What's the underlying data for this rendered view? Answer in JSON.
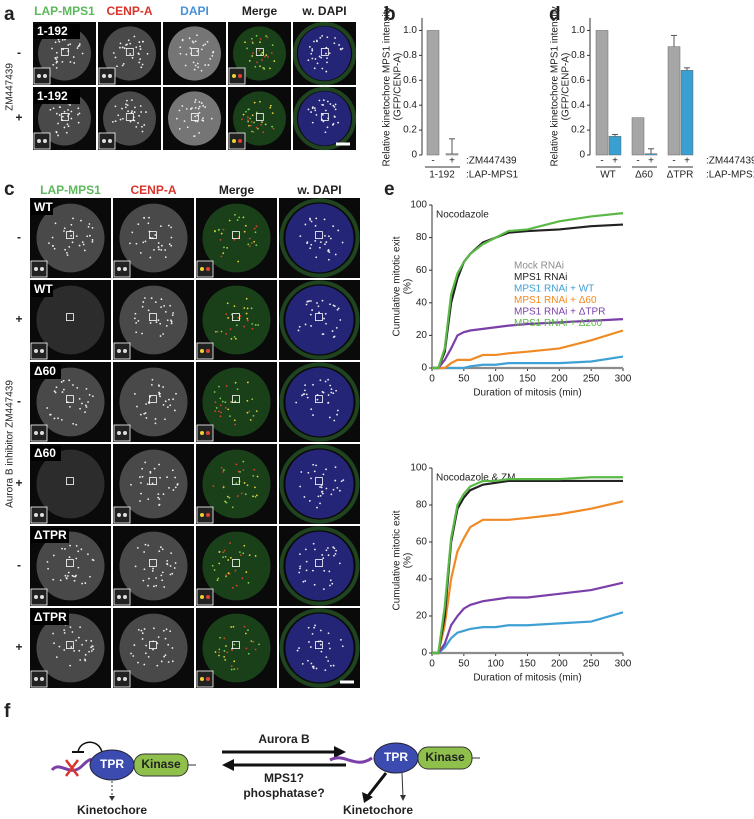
{
  "panel_a": {
    "letter": "a",
    "columns": [
      "LAP-MPS1",
      "CENP-A",
      "DAPI",
      "Merge",
      "w. DAPI"
    ],
    "side_label": "ZM447439",
    "rows": [
      {
        "label": "1-192",
        "condition": "-"
      },
      {
        "label": "1-192",
        "condition": "+"
      }
    ]
  },
  "panel_c": {
    "letter": "c",
    "columns": [
      "LAP-MPS1",
      "CENP-A",
      "Merge",
      "w. DAPI"
    ],
    "side_label": "Aurora B inhibitor ZM447439",
    "rows": [
      {
        "label": "WT",
        "condition": "-"
      },
      {
        "label": "WT",
        "condition": "+"
      },
      {
        "label": "Δ60",
        "condition": "-"
      },
      {
        "label": "Δ60",
        "condition": "+"
      },
      {
        "label": "ΔTPR",
        "condition": "-"
      },
      {
        "label": "ΔTPR",
        "condition": "+"
      }
    ]
  },
  "chart_data": [
    {
      "type": "bar",
      "letter": "b",
      "ylabel": "Relative kinetochore MPS1 intensity (GFP/CENP-A)",
      "categories": [
        "-",
        "+"
      ],
      "group_label": "1-192",
      "row_labels": [
        ":ZM447439",
        ":LAP-MPS1"
      ],
      "color": "#a6a6a6",
      "values": [
        1,
        0.01
      ],
      "errors": [
        null,
        0.12
      ],
      "ylim": [
        0,
        1.1
      ],
      "yticks": [
        0,
        0.2,
        0.4,
        0.6,
        0.8,
        {
          "value": 1,
          "label": "1.0"
        }
      ]
    },
    {
      "type": "grouped_bar",
      "letter": "d",
      "ylabel": "Relative kinetochore MPS1 intensity (GFP/CENP-A)",
      "categories": [
        "WT",
        "Δ60",
        "ΔTPR"
      ],
      "row_labels": [
        ":ZM447439",
        ":LAP-MPS1"
      ],
      "series": [
        {
          "name": "-",
          "color": "#a6a6a6",
          "values": [
            1,
            0.3,
            0.87
          ],
          "errors": [
            null,
            null,
            0.09
          ]
        },
        {
          "name": "+",
          "color": "#3a9fd1",
          "values": [
            0.15,
            0.01,
            0.68
          ],
          "errors": [
            0.015,
            0.04,
            0.02
          ]
        }
      ],
      "ylim": [
        0,
        1.1
      ],
      "yticks": [
        0,
        0.2,
        0.4,
        0.6,
        0.8,
        {
          "value": 1,
          "label": "1.0"
        }
      ]
    },
    {
      "type": "line",
      "letter": "e",
      "title": "Nocodazole",
      "xlabel": "Duration of mitosis (min)",
      "ylabel": "Cumulative mitotic exit (%)",
      "legend": "right",
      "x": [
        0,
        10,
        20,
        30,
        40,
        50,
        60,
        80,
        100,
        120,
        150,
        200,
        250,
        300
      ],
      "series": [
        {
          "name": "Mock RNAi",
          "color": "#8c8c8c",
          "values": [
            0,
            0,
            0,
            0,
            0,
            0,
            0,
            0,
            0,
            0,
            0,
            0,
            0,
            0
          ]
        },
        {
          "name": "MPS1 RNAi",
          "color": "#222222",
          "values": [
            0,
            0,
            10,
            40,
            55,
            65,
            70,
            77,
            80,
            83,
            84,
            85,
            87,
            88
          ]
        },
        {
          "name": "MPS1 RNAi + WT",
          "color": "#3fa0d4",
          "values": [
            0,
            0,
            0,
            0,
            0,
            0,
            1,
            2,
            2,
            3,
            3,
            3,
            4,
            7
          ]
        },
        {
          "name": "MPS1 RNAi + Δ60",
          "color": "#f08a24",
          "values": [
            0,
            0,
            0,
            3,
            5,
            5,
            5,
            8,
            8,
            9,
            10,
            12,
            17,
            23
          ]
        },
        {
          "name": "MPS1 RNAi + ΔTPR",
          "color": "#7a3fa8",
          "values": [
            0,
            0,
            5,
            12,
            20,
            22,
            23,
            24,
            25,
            26,
            27,
            28,
            29,
            30
          ]
        },
        {
          "name": "MPS1 RNAi + Δ200",
          "color": "#5bb847",
          "values": [
            0,
            0,
            12,
            45,
            58,
            65,
            70,
            76,
            80,
            84,
            85,
            90,
            93,
            95
          ]
        }
      ],
      "xlim": [
        0,
        300
      ],
      "xticks": [
        0,
        50,
        100,
        150,
        200,
        250,
        300
      ],
      "ylim": [
        0,
        100
      ],
      "yticks": [
        0,
        20,
        40,
        60,
        80,
        100
      ]
    },
    {
      "type": "line",
      "title": "Nocodazole & ZM",
      "xlabel": "Duration of mitosis (min)",
      "ylabel": "Cumulative mitotic exit (%)",
      "x": [
        0,
        10,
        20,
        30,
        40,
        50,
        60,
        80,
        100,
        120,
        150,
        200,
        250,
        300
      ],
      "series": [
        {
          "color": "#8c8c8c",
          "values": [
            0,
            0,
            0,
            0,
            0,
            0,
            0,
            0,
            0,
            0,
            0,
            0,
            0,
            0
          ]
        },
        {
          "color": "#3fa0d4",
          "values": [
            0,
            0,
            3,
            8,
            11,
            12,
            13,
            14,
            14,
            15,
            15,
            16,
            17,
            22
          ]
        },
        {
          "color": "#7a3fa8",
          "values": [
            0,
            0,
            5,
            15,
            20,
            24,
            26,
            28,
            29,
            30,
            30,
            32,
            34,
            38
          ]
        },
        {
          "color": "#f08a24",
          "values": [
            0,
            0,
            15,
            40,
            55,
            62,
            68,
            72,
            72,
            72,
            73,
            75,
            78,
            82
          ]
        },
        {
          "color": "#222222",
          "values": [
            0,
            0,
            20,
            60,
            78,
            84,
            88,
            91,
            92,
            93,
            93,
            93,
            93,
            93
          ]
        },
        {
          "color": "#5bb847",
          "values": [
            0,
            0,
            25,
            62,
            80,
            86,
            90,
            93,
            93,
            94,
            94,
            94,
            95,
            95
          ]
        }
      ],
      "xlim": [
        0,
        300
      ],
      "xticks": [
        0,
        50,
        100,
        150,
        200,
        250,
        300
      ],
      "ylim": [
        0,
        100
      ],
      "yticks": [
        0,
        20,
        40,
        60,
        80,
        100
      ]
    }
  ],
  "panel_f": {
    "letter": "f",
    "left": {
      "domain": "TPR",
      "kinase": "Kinase",
      "target": "Kinetochore"
    },
    "right": {
      "domain": "TPR",
      "kinase": "Kinase",
      "target": "Kinetochore"
    },
    "forward": "Aurora B",
    "reverse": [
      "MPS1?",
      "phosphatase?"
    ]
  }
}
